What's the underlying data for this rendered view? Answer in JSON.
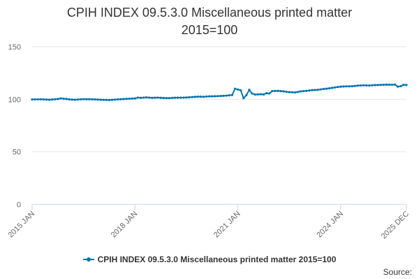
{
  "chart_data": {
    "type": "line",
    "title_lines": [
      "CPIH INDEX 09.5.3.0 Miscellaneous printed matter",
      "2015=100"
    ],
    "xlabel": "",
    "ylabel": "",
    "ylim": [
      0,
      150
    ],
    "y_ticks": [
      "0",
      "50",
      "100",
      "150"
    ],
    "x_tick_labels": [
      "2015 JAN",
      "2018 JAN",
      "2021 JAN",
      "2024 JAN",
      "2025 DEC"
    ],
    "x_tick_months": [
      0,
      36,
      72,
      108,
      131
    ],
    "grid": true,
    "legend_position": "bottom",
    "series": [
      {
        "name": "CPIH INDEX 09.5.3.0 Miscellaneous printed matter 2015=100",
        "color": "#0075b0",
        "keypoints": [
          [
            0,
            99.8
          ],
          [
            3,
            100.0
          ],
          [
            6,
            99.6
          ],
          [
            9,
            100.2
          ],
          [
            10,
            100.8
          ],
          [
            12,
            100.3
          ],
          [
            13,
            99.9
          ],
          [
            15,
            99.6
          ],
          [
            18,
            100.1
          ],
          [
            21,
            100.0
          ],
          [
            24,
            99.6
          ],
          [
            27,
            99.3
          ],
          [
            30,
            99.9
          ],
          [
            33,
            100.4
          ],
          [
            36,
            100.8
          ],
          [
            37,
            101.6
          ],
          [
            38,
            101.4
          ],
          [
            40,
            101.8
          ],
          [
            42,
            101.4
          ],
          [
            44,
            101.6
          ],
          [
            46,
            101.2
          ],
          [
            48,
            101.1
          ],
          [
            50,
            101.5
          ],
          [
            53,
            101.6
          ],
          [
            55,
            101.9
          ],
          [
            58,
            102.5
          ],
          [
            60,
            102.4
          ],
          [
            62,
            102.8
          ],
          [
            64,
            102.9
          ],
          [
            66,
            103.1
          ],
          [
            68,
            103.5
          ],
          [
            69,
            103.8
          ],
          [
            70,
            104.0
          ],
          [
            71,
            110.0
          ],
          [
            72,
            109.3
          ],
          [
            73,
            108.5
          ],
          [
            74,
            101.0
          ],
          [
            75,
            104.0
          ],
          [
            76,
            109.0
          ],
          [
            77,
            105.5
          ],
          [
            78,
            104.5
          ],
          [
            80,
            104.8
          ],
          [
            81,
            104.6
          ],
          [
            82,
            105.8
          ],
          [
            83,
            105.5
          ],
          [
            84,
            107.8
          ],
          [
            86,
            108.0
          ],
          [
            88,
            107.5
          ],
          [
            90,
            106.8
          ],
          [
            92,
            106.5
          ],
          [
            94,
            107.5
          ],
          [
            96,
            108.0
          ],
          [
            98,
            108.7
          ],
          [
            100,
            109.0
          ],
          [
            102,
            109.8
          ],
          [
            104,
            110.4
          ],
          [
            106,
            111.3
          ],
          [
            108,
            112.0
          ],
          [
            110,
            112.3
          ],
          [
            112,
            112.4
          ],
          [
            114,
            113.0
          ],
          [
            116,
            113.3
          ],
          [
            118,
            113.1
          ],
          [
            120,
            113.5
          ],
          [
            122,
            113.7
          ],
          [
            124,
            113.9
          ],
          [
            126,
            113.8
          ],
          [
            127,
            114.0
          ],
          [
            128,
            112.0
          ],
          [
            129,
            112.5
          ],
          [
            130,
            113.8
          ],
          [
            131,
            113.6
          ]
        ]
      }
    ]
  },
  "legend": {
    "label": "CPIH INDEX 09.5.3.0 Miscellaneous printed matter 2015=100"
  },
  "source": {
    "label": "Source:"
  }
}
